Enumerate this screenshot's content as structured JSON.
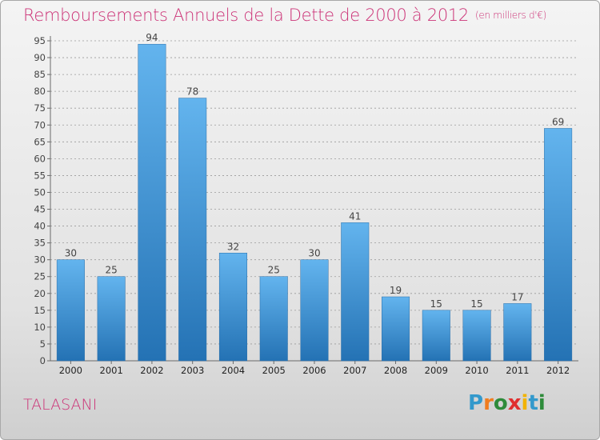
{
  "title": "Remboursements Annuels de la Dette de 2000 à 2012",
  "subtitle": "(en milliers d'€)",
  "place": "TALASANI",
  "brand": {
    "letters": [
      "P",
      "r",
      "o",
      "x",
      "i",
      "t",
      "i"
    ],
    "colors": [
      "#3399cc",
      "#f07d1f",
      "#2e8b3a",
      "#e02f2f",
      "#f2b300",
      "#3399cc",
      "#2e8b3a"
    ]
  },
  "colors": {
    "title": "#cc3377",
    "bar_top": "#63b4ee",
    "bar_bottom": "#2472b4",
    "axis": "#6a6a6a",
    "grid": "#9a9a9a"
  },
  "chart_data": {
    "type": "bar",
    "title": "Remboursements Annuels de la Dette de 2000 à 2012",
    "subtitle": "(en milliers d'€)",
    "xlabel": "",
    "ylabel": "",
    "categories": [
      "2000",
      "2001",
      "2002",
      "2003",
      "2004",
      "2005",
      "2006",
      "2007",
      "2008",
      "2009",
      "2010",
      "2011",
      "2012"
    ],
    "values": [
      30,
      25,
      94,
      78,
      32,
      25,
      30,
      41,
      19,
      15,
      15,
      17,
      69
    ],
    "ylim": [
      0,
      95
    ],
    "yticks": [
      0,
      5,
      10,
      15,
      20,
      25,
      30,
      35,
      40,
      45,
      50,
      55,
      60,
      65,
      70,
      75,
      80,
      85,
      90,
      95
    ],
    "grid": "horizontal dashed",
    "legend": "none"
  }
}
